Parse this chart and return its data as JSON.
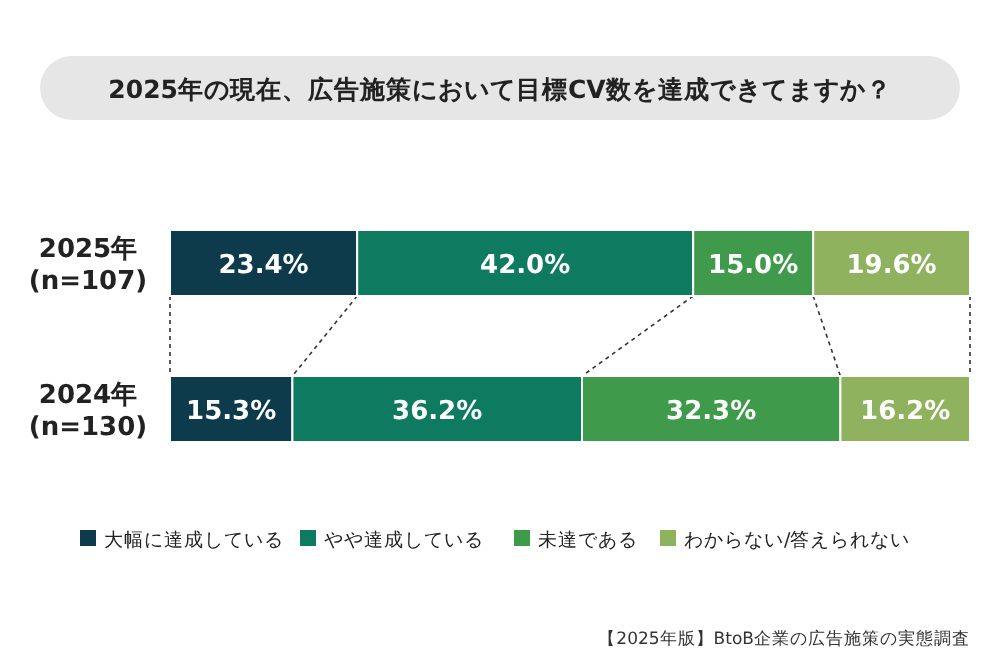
{
  "chart_data": {
    "type": "bar",
    "orientation": "horizontal",
    "stacked": true,
    "title": "2025年の現在、広告施策において目標CV数を達成できてますか？",
    "categories": [
      "2025年\n(n=107)",
      "2024年\n(n=130)"
    ],
    "series": [
      {
        "name": "大幅に達成している",
        "color": "#0d3b4c",
        "values": [
          23.4,
          15.3
        ],
        "value_labels": [
          "23.4%",
          "15.3%"
        ]
      },
      {
        "name": "やや達成している",
        "color": "#0e7a60",
        "values": [
          42.0,
          36.2
        ],
        "value_labels": [
          "42.0%",
          "36.2%"
        ]
      },
      {
        "name": "未達である",
        "color": "#3f9a4c",
        "values": [
          15.0,
          32.3
        ],
        "value_labels": [
          "15.0%",
          "32.3%"
        ]
      },
      {
        "name": "わからない/答えられない",
        "color": "#8fb25e",
        "values": [
          19.6,
          16.2
        ],
        "value_labels": [
          "19.6%",
          "16.2%"
        ]
      }
    ],
    "legend": "bottom",
    "annotations": [
      "【2025年版】BtoB企業の広告施策の実態調査"
    ]
  }
}
